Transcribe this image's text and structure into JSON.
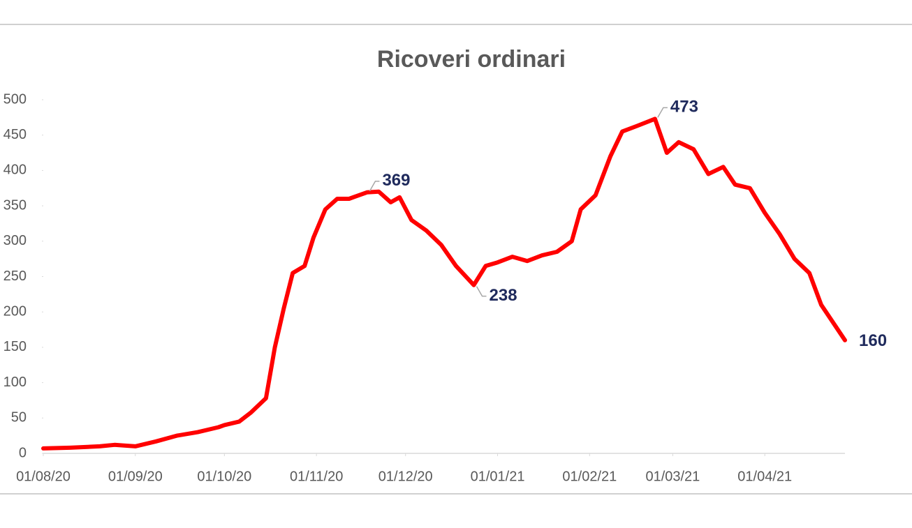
{
  "chart_data": {
    "type": "line",
    "title": "Ricoveri ordinari",
    "x": [
      "01/08/20",
      "10/08/20",
      "20/08/20",
      "25/08/20",
      "01/09/20",
      "08/09/20",
      "15/09/20",
      "22/09/20",
      "29/09/20",
      "01/10/20",
      "06/10/20",
      "10/10/20",
      "15/10/20",
      "18/10/20",
      "21/10/20",
      "24/10/20",
      "28/10/20",
      "31/10/20",
      "04/11/20",
      "08/11/20",
      "12/11/20",
      "18/11/20",
      "22/11/20",
      "26/11/20",
      "29/11/20",
      "03/12/20",
      "08/12/20",
      "13/12/20",
      "18/12/20",
      "24/12/20",
      "28/12/20",
      "01/01/21",
      "06/01/21",
      "11/01/21",
      "16/01/21",
      "21/01/21",
      "26/01/21",
      "29/01/21",
      "03/02/21",
      "08/02/21",
      "12/02/21",
      "17/02/21",
      "23/02/21",
      "27/02/21",
      "03/03/21",
      "08/03/21",
      "13/03/21",
      "18/03/21",
      "22/03/21",
      "27/03/21",
      "01/04/21",
      "06/04/21",
      "11/04/21",
      "16/04/21",
      "20/04/21",
      "24/04/21",
      "28/04/21"
    ],
    "series": [
      {
        "name": "Ricoveri ordinari",
        "color": "#ff0000",
        "values": [
          7,
          8,
          10,
          12,
          10,
          17,
          25,
          30,
          37,
          40,
          45,
          58,
          78,
          150,
          205,
          255,
          265,
          305,
          345,
          360,
          360,
          369,
          370,
          355,
          362,
          330,
          315,
          295,
          265,
          238,
          265,
          270,
          278,
          272,
          280,
          285,
          300,
          345,
          365,
          420,
          455,
          463,
          473,
          425,
          440,
          430,
          395,
          405,
          380,
          375,
          340,
          310,
          275,
          255,
          210,
          185,
          160
        ]
      }
    ],
    "annotations": [
      {
        "x": "18/11/20",
        "y": 369
      },
      {
        "x": "24/12/20",
        "y": 238
      },
      {
        "x": "23/02/21",
        "y": 473
      },
      {
        "x": "28/04/21",
        "y": 160
      }
    ],
    "xlim": [
      "01/08/20",
      "28/04/21"
    ],
    "xticks": [
      "01/08/20",
      "01/09/20",
      "01/10/20",
      "01/11/20",
      "01/12/20",
      "01/01/21",
      "01/02/21",
      "01/03/21",
      "01/04/21"
    ],
    "ylim": [
      0,
      500
    ],
    "yticks": [
      0,
      50,
      100,
      150,
      200,
      250,
      300,
      350,
      400,
      450,
      500
    ],
    "grid": false
  }
}
